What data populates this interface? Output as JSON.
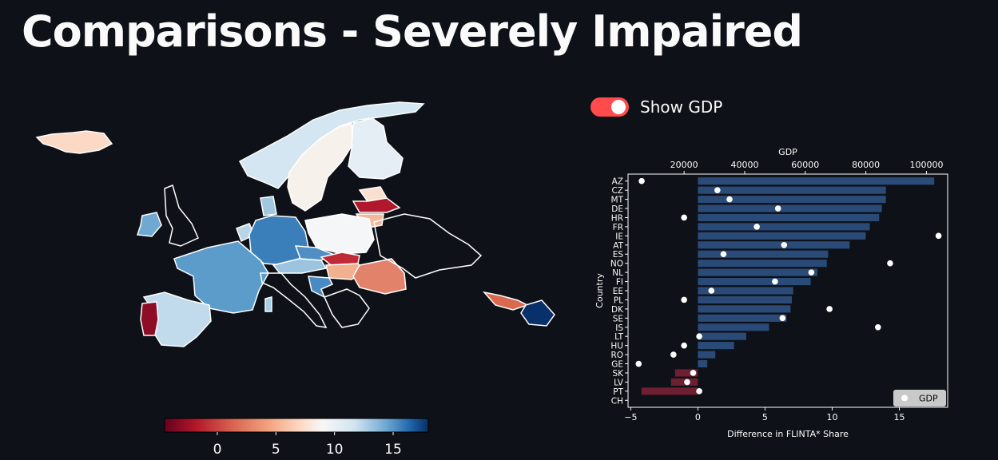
{
  "page": {
    "title": "Comparisons - Severely Impaired"
  },
  "toggle": {
    "label": "Show GDP",
    "checked": true,
    "color": "#ff4b4b"
  },
  "map": {
    "colorbar_ticks": [
      "0",
      "5",
      "10",
      "15"
    ],
    "colorbar_range": [
      -4.5,
      18
    ],
    "colormap": "RdBu",
    "border_color": "#ffffff",
    "background": "#0e1117"
  },
  "chart_data": {
    "type": "bar",
    "orientation": "horizontal",
    "ylabel": "Country",
    "xlabel": "Difference in FLINTA* Share",
    "top_axis_label": "GDP",
    "xlim": [
      -5.2,
      18.6
    ],
    "xticks": [
      "−5",
      "0",
      "5",
      "10",
      "15"
    ],
    "gdp_lim": [
      1500,
      107000
    ],
    "gdp_ticks": [
      "20000",
      "40000",
      "60000",
      "80000",
      "100000"
    ],
    "legend": {
      "label": "GDP",
      "placement": "lower-right"
    },
    "positive_color": "#2a4a78",
    "negative_color": "#6e1f32",
    "categories": [
      "AZ",
      "CZ",
      "MT",
      "DE",
      "HR",
      "FR",
      "IE",
      "AT",
      "ES",
      "NO",
      "NL",
      "FI",
      "EE",
      "PL",
      "DK",
      "SE",
      "IS",
      "LT",
      "HU",
      "RO",
      "GE",
      "SK",
      "LV",
      "PT",
      "CH"
    ],
    "series": [
      {
        "values": [
          17.6,
          14.0,
          14.0,
          13.7,
          13.5,
          12.8,
          12.5,
          11.3,
          9.7,
          9.6,
          8.9,
          8.4,
          7.1,
          7.0,
          6.9,
          6.6,
          5.3,
          3.6,
          2.7,
          1.3,
          0.7,
          -1.7,
          -2.0,
          -4.2,
          0.0
        ]
      },
      {
        "name": "GDP",
        "values": [
          6000,
          31000,
          35000,
          51000,
          20000,
          44000,
          104000,
          53000,
          33000,
          88000,
          62000,
          50000,
          29000,
          20000,
          68000,
          52500,
          84000,
          25000,
          20000,
          16500,
          5000,
          23000,
          21000,
          25000,
          null
        ]
      }
    ]
  }
}
